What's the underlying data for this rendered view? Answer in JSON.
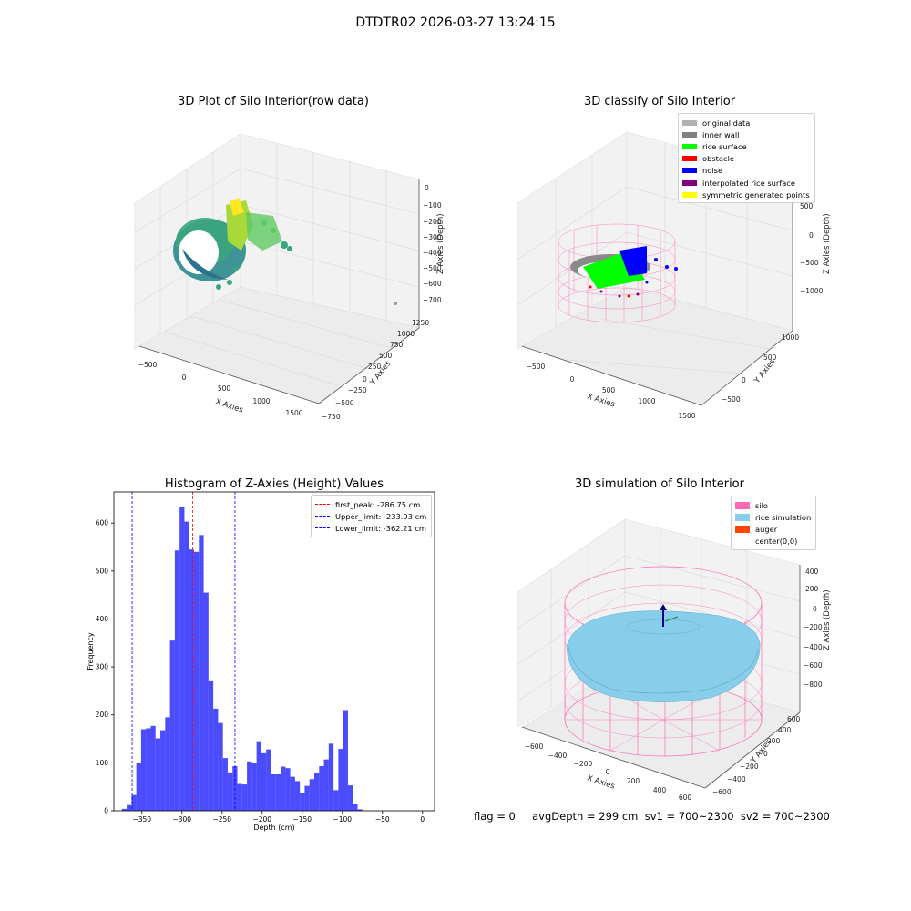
{
  "figure_title": "DTDTR02 2026-03-27 13:24:15",
  "status_line": "flag = 0     avgDepth = 299 cm  sv1 = 700~2300  sv2 = 700~2300",
  "panels": {
    "raw": {
      "title": "3D Plot of Silo Interior(row data)",
      "xlabel": "X Axies",
      "ylabel": "Y Axies",
      "zlabel": "Z Axies (Depth)",
      "xticks": [
        "−500",
        "0",
        "500",
        "1000",
        "1500"
      ],
      "yticks": [
        "−750",
        "−500",
        "−250",
        "0",
        "250",
        "500",
        "750",
        "1000",
        "1250"
      ],
      "zticks": [
        "0",
        "−100",
        "−200",
        "−300",
        "−400",
        "−500",
        "−600",
        "−700"
      ]
    },
    "classify": {
      "title": "3D classify of Silo Interior",
      "xlabel": "X Axies",
      "ylabel": "Y Axies",
      "zlabel": "Z Axies (Depth)",
      "xticks": [
        "−500",
        "0",
        "500",
        "1000",
        "1500"
      ],
      "yticks": [
        "−500",
        "0",
        "500",
        "1000"
      ],
      "zticks": [
        "500",
        "0",
        "−500",
        "−1000"
      ],
      "legend": [
        {
          "label": "original data",
          "color": "#b0b0b0"
        },
        {
          "label": "inner wall",
          "color": "#808080"
        },
        {
          "label": "rice surface",
          "color": "#00ff00"
        },
        {
          "label": "obstacle",
          "color": "#ff0000"
        },
        {
          "label": "noise",
          "color": "#0000ff"
        },
        {
          "label": "interpolated rice surface",
          "color": "#800080"
        },
        {
          "label": "symmetric generated points",
          "color": "#ffff00"
        }
      ]
    },
    "simulation": {
      "title": "3D simulation of Silo Interior",
      "xlabel": "X Axies",
      "ylabel": "Y Axies",
      "zlabel": "Z Axies (Depth)",
      "xticks": [
        "−600",
        "−400",
        "−200",
        "0",
        "200",
        "400",
        "600"
      ],
      "yticks": [
        "−600",
        "−400",
        "−200",
        "0",
        "200",
        "400",
        "600"
      ],
      "zticks": [
        "400",
        "200",
        "0",
        "−200",
        "−400",
        "−600",
        "−800"
      ],
      "legend": [
        {
          "label": "silo",
          "color": "#ff69b4"
        },
        {
          "label": "rice simulation",
          "color": "#87ceeb"
        },
        {
          "label": "auger",
          "color": "#ff4500"
        },
        {
          "label": "center(0,0)",
          "color": "#ffffff"
        }
      ]
    }
  },
  "chart_data": {
    "type": "bar",
    "title": "Histogram of Z-Axies (Height) Values",
    "xlabel": "Depth (cm)",
    "ylabel": "Frequency",
    "xlim": [
      -385,
      15
    ],
    "ylim": [
      0,
      665
    ],
    "xticks": [
      -350,
      -300,
      -250,
      -200,
      -150,
      -100,
      -50,
      0
    ],
    "yticks": [
      0,
      100,
      200,
      300,
      400,
      500,
      600
    ],
    "bar_color": "#0000ff",
    "bins": [
      {
        "x0": -375,
        "x1": -369,
        "v": 4
      },
      {
        "x0": -369,
        "x1": -363,
        "v": 12
      },
      {
        "x0": -363,
        "x1": -357,
        "v": 33
      },
      {
        "x0": -357,
        "x1": -351,
        "v": 99
      },
      {
        "x0": -351,
        "x1": -345,
        "v": 170
      },
      {
        "x0": -345,
        "x1": -339,
        "v": 172
      },
      {
        "x0": -339,
        "x1": -333,
        "v": 177
      },
      {
        "x0": -333,
        "x1": -327,
        "v": 151
      },
      {
        "x0": -327,
        "x1": -321,
        "v": 168
      },
      {
        "x0": -321,
        "x1": -315,
        "v": 195
      },
      {
        "x0": -315,
        "x1": -309,
        "v": 355
      },
      {
        "x0": -309,
        "x1": -303,
        "v": 543
      },
      {
        "x0": -303,
        "x1": -297,
        "v": 633
      },
      {
        "x0": -297,
        "x1": -291,
        "v": 603
      },
      {
        "x0": -291,
        "x1": -285,
        "v": 545
      },
      {
        "x0": -285,
        "x1": -279,
        "v": 540
      },
      {
        "x0": -279,
        "x1": -273,
        "v": 575
      },
      {
        "x0": -273,
        "x1": -267,
        "v": 455
      },
      {
        "x0": -267,
        "x1": -261,
        "v": 272
      },
      {
        "x0": -261,
        "x1": -255,
        "v": 213
      },
      {
        "x0": -255,
        "x1": -249,
        "v": 183
      },
      {
        "x0": -249,
        "x1": -243,
        "v": 110
      },
      {
        "x0": -243,
        "x1": -237,
        "v": 80
      },
      {
        "x0": -237,
        "x1": -231,
        "v": 93
      },
      {
        "x0": -231,
        "x1": -225,
        "v": 56
      },
      {
        "x0": -225,
        "x1": -219,
        "v": 55
      },
      {
        "x0": -219,
        "x1": -213,
        "v": 103
      },
      {
        "x0": -213,
        "x1": -207,
        "v": 99
      },
      {
        "x0": -207,
        "x1": -201,
        "v": 145
      },
      {
        "x0": -201,
        "x1": -195,
        "v": 120
      },
      {
        "x0": -195,
        "x1": -189,
        "v": 128
      },
      {
        "x0": -189,
        "x1": -183,
        "v": 76
      },
      {
        "x0": -183,
        "x1": -177,
        "v": 76
      },
      {
        "x0": -177,
        "x1": -171,
        "v": 92
      },
      {
        "x0": -171,
        "x1": -165,
        "v": 89
      },
      {
        "x0": -165,
        "x1": -159,
        "v": 71
      },
      {
        "x0": -159,
        "x1": -153,
        "v": 62
      },
      {
        "x0": -153,
        "x1": -147,
        "v": 37
      },
      {
        "x0": -147,
        "x1": -141,
        "v": 52
      },
      {
        "x0": -141,
        "x1": -135,
        "v": 66
      },
      {
        "x0": -135,
        "x1": -129,
        "v": 78
      },
      {
        "x0": -129,
        "x1": -123,
        "v": 93
      },
      {
        "x0": -123,
        "x1": -117,
        "v": 107
      },
      {
        "x0": -117,
        "x1": -111,
        "v": 140
      },
      {
        "x0": -111,
        "x1": -105,
        "v": 43
      },
      {
        "x0": -105,
        "x1": -99,
        "v": 129
      },
      {
        "x0": -99,
        "x1": -93,
        "v": 210
      },
      {
        "x0": -93,
        "x1": -87,
        "v": 53
      },
      {
        "x0": -87,
        "x1": -81,
        "v": 15
      },
      {
        "x0": -81,
        "x1": -75,
        "v": 3
      }
    ],
    "vlines": [
      {
        "label": "first_peak: -286.75 cm",
        "x": -286.75,
        "color": "#ff0000"
      },
      {
        "label": "Upper_limit: -233.93 cm",
        "x": -233.93,
        "color": "#0000ff"
      },
      {
        "label": "Lower_limit: -362.21 cm",
        "x": -362.21,
        "color": "#0000ff"
      }
    ]
  }
}
